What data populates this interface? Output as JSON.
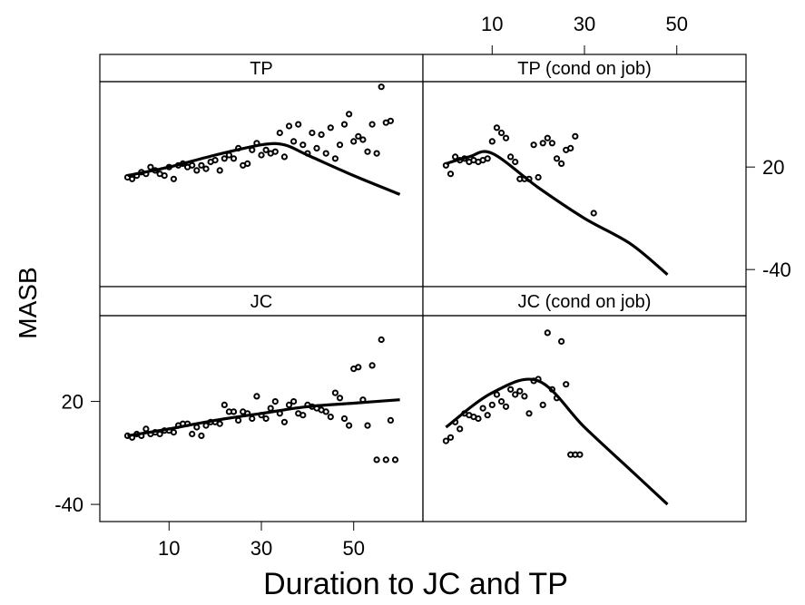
{
  "chart_data": {
    "type": "scatter",
    "xlabel": "Duration to JC and TP",
    "ylabel": "MASB",
    "xlim": [
      -5,
      65
    ],
    "ylim": [
      -50,
      70
    ],
    "x_ticks": [
      10,
      30,
      50
    ],
    "y_ticks": [
      20,
      -40
    ],
    "panels": [
      {
        "id": "tp",
        "title": "TP",
        "points": [
          [
            1,
            14
          ],
          [
            2,
            13
          ],
          [
            3,
            15
          ],
          [
            4,
            17
          ],
          [
            5,
            16
          ],
          [
            6,
            20
          ],
          [
            7,
            18
          ],
          [
            8,
            16
          ],
          [
            9,
            15
          ],
          [
            10,
            20
          ],
          [
            11,
            13
          ],
          [
            12,
            21
          ],
          [
            13,
            22
          ],
          [
            14,
            20
          ],
          [
            15,
            21
          ],
          [
            16,
            18
          ],
          [
            17,
            21
          ],
          [
            18,
            19
          ],
          [
            19,
            23
          ],
          [
            20,
            24
          ],
          [
            21,
            18
          ],
          [
            22,
            25
          ],
          [
            23,
            27
          ],
          [
            24,
            25
          ],
          [
            25,
            31
          ],
          [
            26,
            21
          ],
          [
            27,
            22
          ],
          [
            28,
            30
          ],
          [
            29,
            34
          ],
          [
            30,
            27
          ],
          [
            31,
            30
          ],
          [
            32,
            28
          ],
          [
            33,
            29
          ],
          [
            34,
            40
          ],
          [
            35,
            26
          ],
          [
            36,
            44
          ],
          [
            37,
            35
          ],
          [
            38,
            45
          ],
          [
            39,
            33
          ],
          [
            40,
            28
          ],
          [
            41,
            40
          ],
          [
            42,
            31
          ],
          [
            43,
            39
          ],
          [
            44,
            28
          ],
          [
            45,
            43
          ],
          [
            46,
            25
          ],
          [
            47,
            33
          ],
          [
            48,
            45
          ],
          [
            49,
            51
          ],
          [
            50,
            35
          ],
          [
            51,
            38
          ],
          [
            52,
            36
          ],
          [
            53,
            29
          ],
          [
            54,
            45
          ],
          [
            55,
            28
          ],
          [
            56,
            67
          ],
          [
            57,
            46
          ],
          [
            58,
            47
          ]
        ],
        "curve": [
          [
            1,
            15
          ],
          [
            10,
            20
          ],
          [
            20,
            27
          ],
          [
            30,
            33
          ],
          [
            35,
            33
          ],
          [
            40,
            27
          ],
          [
            50,
            15
          ],
          [
            60,
            4
          ]
        ]
      },
      {
        "id": "tp-cond",
        "title": "TP (cond on job)",
        "points": [
          [
            0,
            21
          ],
          [
            1,
            16
          ],
          [
            2,
            26
          ],
          [
            3,
            24
          ],
          [
            4,
            25
          ],
          [
            5,
            23
          ],
          [
            6,
            24
          ],
          [
            7,
            23
          ],
          [
            8,
            24
          ],
          [
            9,
            25
          ],
          [
            10,
            35
          ],
          [
            11,
            43
          ],
          [
            12,
            40
          ],
          [
            13,
            37
          ],
          [
            14,
            26
          ],
          [
            15,
            23
          ],
          [
            16,
            13
          ],
          [
            17,
            13
          ],
          [
            18,
            13
          ],
          [
            19,
            33
          ],
          [
            20,
            14
          ],
          [
            21,
            34
          ],
          [
            22,
            37
          ],
          [
            23,
            34
          ],
          [
            24,
            25
          ],
          [
            25,
            22
          ],
          [
            26,
            30
          ],
          [
            27,
            31
          ],
          [
            28,
            38
          ],
          [
            32,
            -7
          ]
        ],
        "curve": [
          [
            0,
            22
          ],
          [
            5,
            26
          ],
          [
            10,
            28
          ],
          [
            20,
            8
          ],
          [
            30,
            -10
          ],
          [
            40,
            -25
          ],
          [
            48,
            -43
          ]
        ]
      },
      {
        "id": "jc",
        "title": "JC",
        "points": [
          [
            1,
            0
          ],
          [
            2,
            -1
          ],
          [
            3,
            1
          ],
          [
            4,
            0
          ],
          [
            5,
            4
          ],
          [
            6,
            1
          ],
          [
            7,
            2
          ],
          [
            8,
            1
          ],
          [
            9,
            3
          ],
          [
            10,
            3
          ],
          [
            11,
            2
          ],
          [
            12,
            6
          ],
          [
            13,
            7
          ],
          [
            14,
            7
          ],
          [
            15,
            1
          ],
          [
            16,
            5
          ],
          [
            17,
            0
          ],
          [
            18,
            6
          ],
          [
            19,
            8
          ],
          [
            20,
            8
          ],
          [
            21,
            7
          ],
          [
            22,
            18
          ],
          [
            23,
            14
          ],
          [
            24,
            14
          ],
          [
            25,
            9
          ],
          [
            26,
            14
          ],
          [
            27,
            13
          ],
          [
            28,
            10
          ],
          [
            29,
            23
          ],
          [
            30,
            12
          ],
          [
            31,
            10
          ],
          [
            32,
            16
          ],
          [
            33,
            20
          ],
          [
            34,
            13
          ],
          [
            35,
            8
          ],
          [
            36,
            18
          ],
          [
            37,
            20
          ],
          [
            38,
            13
          ],
          [
            39,
            12
          ],
          [
            40,
            18
          ],
          [
            41,
            17
          ],
          [
            42,
            16
          ],
          [
            43,
            15
          ],
          [
            44,
            14
          ],
          [
            45,
            11
          ],
          [
            46,
            25
          ],
          [
            47,
            22
          ],
          [
            48,
            10
          ],
          [
            49,
            6
          ],
          [
            50,
            39
          ],
          [
            51,
            40
          ],
          [
            52,
            21
          ],
          [
            53,
            6
          ],
          [
            54,
            41
          ],
          [
            55,
            -14
          ],
          [
            56,
            56
          ],
          [
            57,
            -14
          ],
          [
            58,
            9
          ],
          [
            59,
            -14
          ]
        ],
        "curve": [
          [
            1,
            0
          ],
          [
            10,
            4
          ],
          [
            20,
            9
          ],
          [
            30,
            13
          ],
          [
            40,
            17
          ],
          [
            50,
            19
          ],
          [
            60,
            21
          ]
        ]
      },
      {
        "id": "jc-cond",
        "title": "JC (cond on job)",
        "points": [
          [
            0,
            -3
          ],
          [
            1,
            -1
          ],
          [
            2,
            8
          ],
          [
            3,
            4
          ],
          [
            4,
            13
          ],
          [
            5,
            12
          ],
          [
            6,
            11
          ],
          [
            7,
            10
          ],
          [
            8,
            16
          ],
          [
            9,
            12
          ],
          [
            10,
            18
          ],
          [
            11,
            24
          ],
          [
            12,
            20
          ],
          [
            13,
            17
          ],
          [
            14,
            27
          ],
          [
            15,
            24
          ],
          [
            16,
            26
          ],
          [
            17,
            23
          ],
          [
            18,
            13
          ],
          [
            19,
            32
          ],
          [
            20,
            33
          ],
          [
            21,
            18
          ],
          [
            22,
            60
          ],
          [
            23,
            27
          ],
          [
            24,
            22
          ],
          [
            25,
            55
          ],
          [
            26,
            30
          ],
          [
            27,
            -11
          ],
          [
            28,
            -11
          ],
          [
            29,
            -11
          ]
        ],
        "curve": [
          [
            0,
            5
          ],
          [
            10,
            25
          ],
          [
            20,
            32
          ],
          [
            30,
            5
          ],
          [
            40,
            -20
          ],
          [
            48,
            -40
          ]
        ]
      }
    ]
  }
}
